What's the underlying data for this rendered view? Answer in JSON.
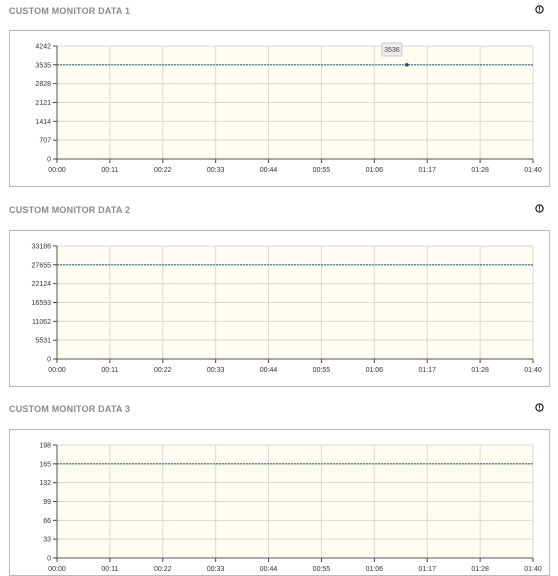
{
  "panels": [
    {
      "title": "CUSTOM MONITOR DATA 1",
      "chart_data": {
        "type": "line",
        "x": [
          "00:00",
          "00:11",
          "00:22",
          "00:33",
          "00:44",
          "00:55",
          "01:06",
          "01:17",
          "01:28",
          "01:40"
        ],
        "yticks": [
          "0",
          "707",
          "1414",
          "2121",
          "2828",
          "3535",
          "4242"
        ],
        "ylim": [
          0,
          4242
        ],
        "series": [
          {
            "values": [
              3536,
              3536,
              3536,
              3536,
              3536,
              3536,
              3536,
              3536,
              3536,
              3536
            ]
          }
        ],
        "tooltip": {
          "text": "3536",
          "x_fraction": 0.735,
          "value": 3536
        },
        "line_color": "#2f6f7a",
        "plot_bg": "#fffcf1",
        "grid": true
      }
    },
    {
      "title": "CUSTOM MONITOR DATA 2",
      "chart_data": {
        "type": "line",
        "x": [
          "00:00",
          "00:11",
          "00:22",
          "00:33",
          "00:44",
          "00:55",
          "01:06",
          "01:17",
          "01:28",
          "01:40"
        ],
        "yticks": [
          "0",
          "5531",
          "11062",
          "16593",
          "22124",
          "27655",
          "33186"
        ],
        "ylim": [
          0,
          33186
        ],
        "series": [
          {
            "values": [
              27655,
              27655,
              27655,
              27655,
              27655,
              27655,
              27655,
              27655,
              27655,
              27655
            ]
          }
        ],
        "line_color": "#2f6f7a",
        "plot_bg": "#fffcf1",
        "grid": true
      }
    },
    {
      "title": "CUSTOM MONITOR DATA 3",
      "chart_data": {
        "type": "line",
        "x": [
          "00:00",
          "00:11",
          "00:22",
          "00:33",
          "00:44",
          "00:55",
          "01:06",
          "01:17",
          "01:28",
          "01:40"
        ],
        "yticks": [
          "0",
          "33",
          "66",
          "99",
          "132",
          "165",
          "198"
        ],
        "ylim": [
          0,
          198
        ],
        "series": [
          {
            "values": [
              165,
              165,
              165,
              165,
              165,
              165,
              165,
              165,
              165,
              165
            ]
          }
        ],
        "line_color": "#2f6f7a",
        "plot_bg": "#fffcf1",
        "grid": true
      }
    }
  ],
  "icons": {
    "panel_info": "info-icon"
  }
}
